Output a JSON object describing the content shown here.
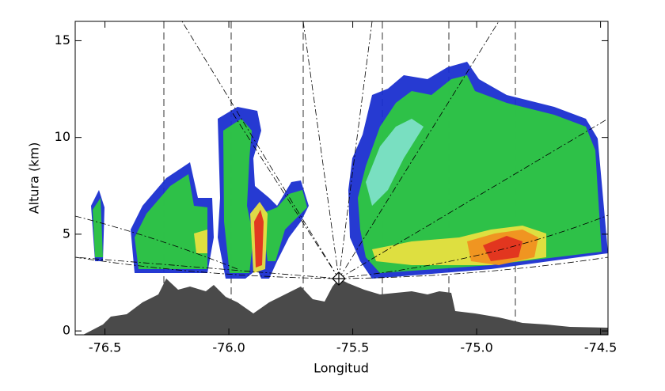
{
  "chart_data": {
    "type": "section",
    "xlabel": "Longitud",
    "ylabel": "Altura (km)",
    "xlim": [
      -76.62,
      -74.47
    ],
    "ylim": [
      -0.2,
      16
    ],
    "xticks": [
      -76.5,
      {
        "value": -76,
        "label": "-76.0"
      },
      -75.5,
      {
        "value": -75,
        "label": "-75.0"
      },
      -74.5
    ],
    "yticks": [
      0,
      5,
      10,
      15
    ]
  }
}
